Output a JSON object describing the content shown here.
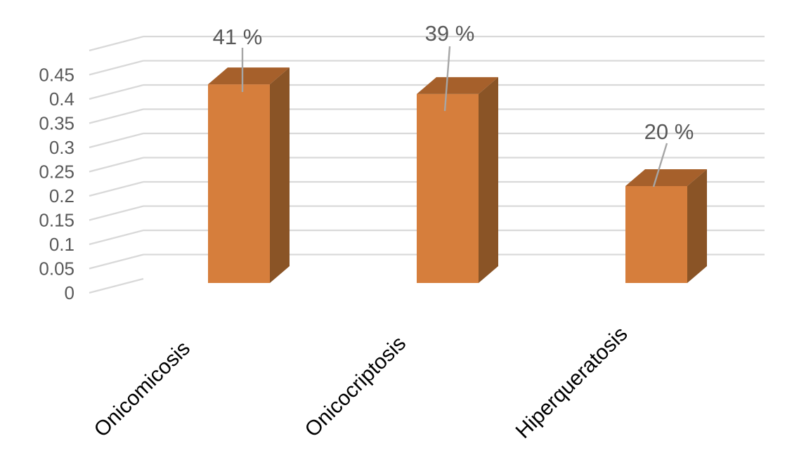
{
  "chart_data": {
    "type": "bar",
    "variant": "3d-column",
    "title": "",
    "xlabel": "",
    "ylabel": "",
    "categories": [
      "Onicomicosis",
      "Onicocriptosis",
      "Hiperqueratosis"
    ],
    "values": [
      0.41,
      0.39,
      0.2
    ],
    "data_labels": [
      "41 %",
      "39 %",
      "20 %"
    ],
    "y_tick_labels": [
      "0",
      "0.05",
      "0.1",
      "0.15",
      "0.2",
      "0.25",
      "0.3",
      "0.35",
      "0.4",
      "0.45"
    ],
    "ylim": [
      0,
      0.5
    ],
    "y_tick_step": 0.05,
    "grid": true,
    "legend_position": "none",
    "colors": {
      "bar_front": "#D67E3C",
      "bar_top": "#A6602B",
      "bar_side": "#8A5426",
      "gridline": "#D9D9D9",
      "axis_text": "#595959",
      "data_label_text": "#595959",
      "category_text": "#000000",
      "leader_line": "#A6A6A6",
      "background": "#FFFFFF"
    }
  }
}
